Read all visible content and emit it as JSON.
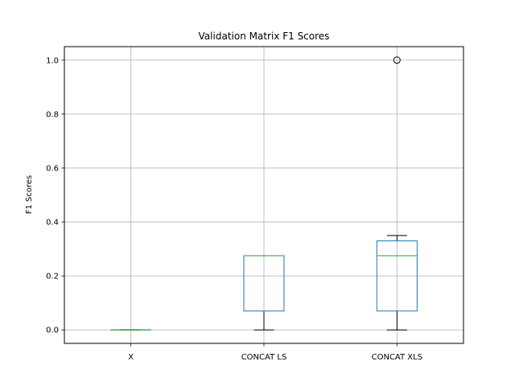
{
  "chart_data": {
    "type": "box",
    "title": "Validation Matrix F1 Scores",
    "xlabel": "",
    "ylabel": "F1 Scores",
    "ylim": [
      -0.05,
      1.05
    ],
    "yticks": [
      "0.0",
      "0.2",
      "0.4",
      "0.6",
      "0.8",
      "1.0"
    ],
    "grid": true,
    "categories": [
      "X",
      "CONCAT LS",
      "CONCAT XLS"
    ],
    "boxes": [
      {
        "category": "X",
        "whisker_low": 0.0,
        "q1": 0.0,
        "median": 0.0,
        "q3": 0.0,
        "whisker_high": 0.0,
        "outliers": []
      },
      {
        "category": "CONCAT LS",
        "whisker_low": 0.0,
        "q1": 0.07,
        "median": 0.275,
        "q3": 0.275,
        "whisker_high": 0.275,
        "outliers": []
      },
      {
        "category": "CONCAT XLS",
        "whisker_low": 0.0,
        "q1": 0.07,
        "median": 0.275,
        "q3": 0.33,
        "whisker_high": 0.35,
        "outliers": [
          1.0
        ]
      }
    ],
    "colors": {
      "box": "#1f77b4",
      "median": "#2ca02c",
      "whisker": "#000000",
      "grid": "#b0b0b0"
    }
  }
}
